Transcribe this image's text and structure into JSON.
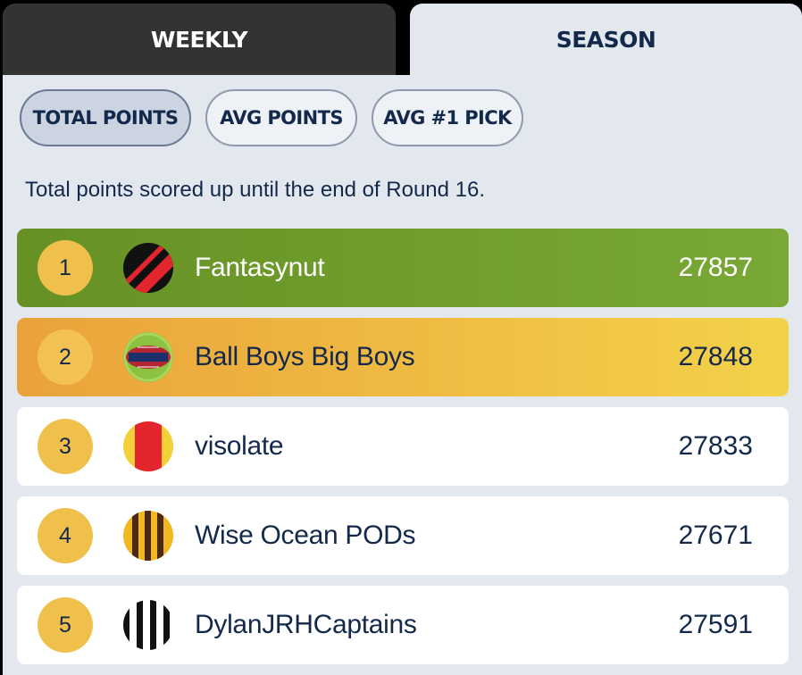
{
  "tabs": {
    "weekly_label": "WEEKLY",
    "season_label": "SEASON",
    "active": "season"
  },
  "filters": {
    "total_points_label": "TOTAL POINTS",
    "avg_points_label": "AVG POINTS",
    "avg_first_pick_label": "AVG #1 PICK",
    "active": "total_points"
  },
  "description": "Total points scored up until the end of Round 16.",
  "leaderboard": [
    {
      "rank": "1",
      "team": "Fantasynut",
      "score": "27857",
      "avatar": "essendon-guernsey-icon"
    },
    {
      "rank": "2",
      "team": "Ball Boys Big Boys",
      "score": "27848",
      "avatar": "football-badge-icon"
    },
    {
      "rank": "3",
      "team": "visolate",
      "score": "27833",
      "avatar": "red-yellow-guernsey-icon"
    },
    {
      "rank": "4",
      "team": "Wise Ocean PODs",
      "score": "27671",
      "avatar": "hawthorn-stripes-icon"
    },
    {
      "rank": "5",
      "team": "DylanJRHCaptains",
      "score": "27591",
      "avatar": "collingwood-stripes-icon"
    }
  ],
  "colors": {
    "navy": "#13294b",
    "first_place": "#6f9e2d",
    "second_place": "#f0c04d",
    "rank_badge": "#f0c04d"
  }
}
